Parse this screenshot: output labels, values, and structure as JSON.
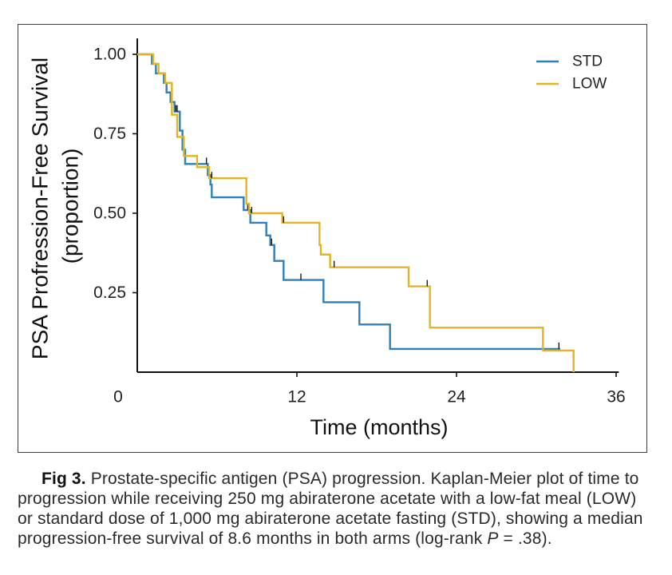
{
  "chart_data": {
    "type": "line",
    "xlabel": "Time (months)",
    "ylabel": "PSA Profression-Free Survival",
    "ylabel_sub": "(proportion)",
    "xlim": [
      0,
      36.2
    ],
    "ylim": [
      0,
      1.05
    ],
    "xticks": [
      {
        "value": 0,
        "label": "0"
      },
      {
        "value": 12,
        "label": "12"
      },
      {
        "value": 24,
        "label": "24"
      },
      {
        "value": 36,
        "label": "36"
      }
    ],
    "yticks": [
      {
        "value": 1.0,
        "label": "1.00"
      },
      {
        "value": 0.75,
        "label": "0.75"
      },
      {
        "value": 0.5,
        "label": "0.50"
      },
      {
        "value": 0.25,
        "label": "0.25"
      }
    ],
    "grid": false,
    "legend_position": "top-right",
    "series": [
      {
        "name": "STD",
        "color": "#2f7fb8",
        "end": 31.8,
        "steps": [
          [
            0,
            1.0
          ],
          [
            1.1,
            0.97
          ],
          [
            1.4,
            0.94
          ],
          [
            2.0,
            0.91
          ],
          [
            2.2,
            0.88
          ],
          [
            2.5,
            0.85
          ],
          [
            2.8,
            0.82
          ],
          [
            3.2,
            0.76
          ],
          [
            3.4,
            0.7
          ],
          [
            3.6,
            0.655
          ],
          [
            5.3,
            0.62
          ],
          [
            5.5,
            0.59
          ],
          [
            5.6,
            0.55
          ],
          [
            8.0,
            0.51
          ],
          [
            8.5,
            0.47
          ],
          [
            9.7,
            0.43
          ],
          [
            10.0,
            0.4
          ],
          [
            10.3,
            0.35
          ],
          [
            11.0,
            0.29
          ],
          [
            14.0,
            0.22
          ],
          [
            16.7,
            0.15
          ],
          [
            19.0,
            0.073
          ]
        ],
        "censored": [
          [
            2.9,
            0.82
          ],
          [
            3.0,
            0.82
          ],
          [
            5.2,
            0.655
          ],
          [
            8.3,
            0.51
          ],
          [
            10.1,
            0.4
          ],
          [
            12.3,
            0.29
          ],
          [
            31.7,
            0.073
          ]
        ]
      },
      {
        "name": "LOW",
        "color": "#e3b422",
        "end": 32.8,
        "steps": [
          [
            0,
            1.0
          ],
          [
            1.2,
            0.97
          ],
          [
            1.6,
            0.94
          ],
          [
            2.1,
            0.91
          ],
          [
            2.6,
            0.81
          ],
          [
            3.0,
            0.74
          ],
          [
            3.5,
            0.68
          ],
          [
            4.5,
            0.645
          ],
          [
            5.4,
            0.61
          ],
          [
            8.2,
            0.53
          ],
          [
            8.4,
            0.5
          ],
          [
            10.9,
            0.47
          ],
          [
            13.7,
            0.4
          ],
          [
            13.8,
            0.37
          ],
          [
            14.5,
            0.33
          ],
          [
            20.4,
            0.27
          ],
          [
            22.0,
            0.14
          ],
          [
            30.5,
            0.068
          ],
          [
            32.8,
            0.0
          ]
        ],
        "censored": [
          [
            5.6,
            0.61
          ],
          [
            8.6,
            0.5
          ],
          [
            11.0,
            0.47
          ],
          [
            14.8,
            0.33
          ],
          [
            21.8,
            0.27
          ]
        ]
      }
    ]
  },
  "caption": {
    "label": "Fig 3.",
    "line1": "Prostate-specific antigen (PSA) progression. Kaplan-Meier plot of time to",
    "line2": "progression while receiving 250 mg abiraterone acetate with a low-fat meal (LOW)",
    "line3": "or standard dose of 1,000 mg abiraterone acetate fasting (STD), showing a median",
    "line4_pre": "progression-free survival of 8.6 months in both arms (log-rank ",
    "line4_italic": "P",
    "line4_post": " = .38)."
  }
}
